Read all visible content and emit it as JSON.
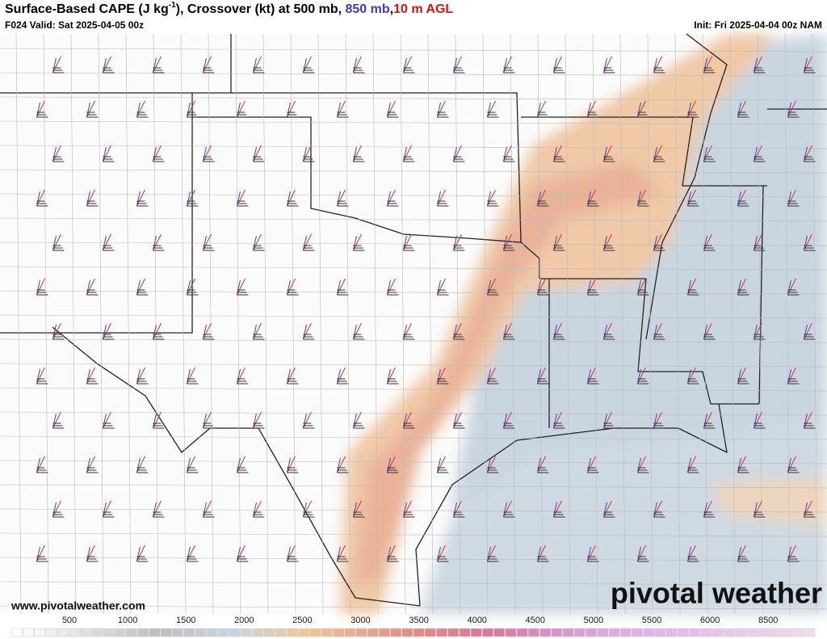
{
  "header": {
    "title_parts": [
      {
        "text": "Surface-Based CAPE (J kg",
        "color": "#000000"
      },
      {
        "text": "-1",
        "color": "#000000",
        "sup": true
      },
      {
        "text": "), Crossover (kt) at 500 mb, ",
        "color": "#000000"
      },
      {
        "text": "850 mb",
        "color": "#3b3bd0"
      },
      {
        "text": ",",
        "color": "#000000"
      },
      {
        "text": "10 m AGL",
        "color": "#e01010"
      }
    ],
    "valid": "F024 Valid: Sat 2025-04-05 00z",
    "init": "Init: Fri 2025-04-04 00z NAM"
  },
  "footer": {
    "website": "www.pivotalweather.com",
    "logo": "pivotal weather"
  },
  "colorbar": {
    "labels": [
      500,
      1000,
      1500,
      2000,
      2500,
      3000,
      3500,
      4000,
      4500,
      5000,
      5500,
      6000,
      8500
    ]
  }
}
